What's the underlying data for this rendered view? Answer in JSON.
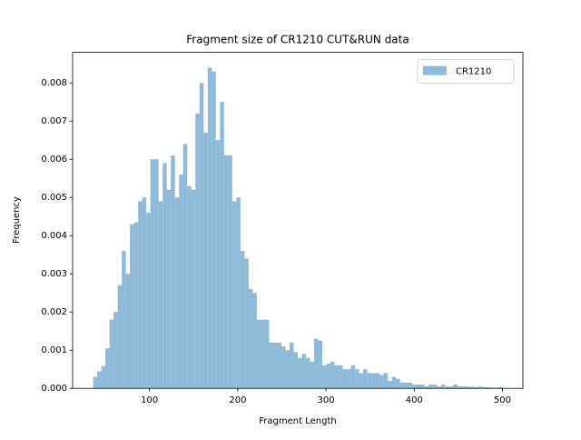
{
  "chart_data": {
    "type": "histogram",
    "title": "Fragment size of CR1210 CUT&RUN data",
    "x_label": "Fragment Length",
    "y_label": "Frequency",
    "bins": [
      36,
      40.64,
      45.28,
      49.92,
      54.56,
      59.2,
      63.84,
      68.48,
      73.12,
      77.76,
      82.4,
      87.04,
      91.68,
      96.32,
      100.96,
      105.6,
      110.24,
      114.88,
      119.52,
      124.16,
      128.8,
      133.44,
      138.08,
      142.72,
      147.36,
      152,
      156.64,
      161.28,
      165.92,
      170.56,
      175.2,
      179.84,
      184.48,
      189.12,
      193.76,
      198.4,
      203.04,
      207.68,
      212.32,
      216.96,
      221.6,
      226.24,
      230.88,
      235.52,
      240.16,
      244.8,
      249.44,
      254.08,
      258.72,
      263.36,
      268,
      272.64,
      277.28,
      281.92,
      286.56,
      291.2,
      295.84,
      300.48,
      305.12,
      309.76,
      314.4,
      319.04,
      323.68,
      328.32,
      332.96,
      337.6,
      342.24,
      346.88,
      351.52,
      356.16,
      360.8,
      365.44,
      370.08,
      374.72,
      379.36,
      384,
      388.64,
      393.28,
      397.92,
      402.56,
      407.2,
      411.84,
      416.48,
      421.12,
      425.76,
      430.4,
      435.04,
      439.68,
      444.32,
      448.96,
      453.6,
      458.24,
      462.88,
      467.52,
      472.16,
      476.8,
      481.44,
      486.08,
      490.72,
      495.36,
      500
    ],
    "series": [
      {
        "name": "CR1210",
        "color": "#1f77b4",
        "alpha": 0.5,
        "values": [
          0.0003,
          0.00045,
          0.00058,
          0.00105,
          0.0018,
          0.002,
          0.0027,
          0.0036,
          0.003,
          0.0043,
          0.00435,
          0.0049,
          0.005,
          0.0046,
          0.006,
          0.006,
          0.0049,
          0.0059,
          0.0052,
          0.0061,
          0.005,
          0.0056,
          0.0064,
          0.0053,
          0.0052,
          0.0072,
          0.008,
          0.0067,
          0.0084,
          0.0083,
          0.0065,
          0.0075,
          0.0061,
          0.0061,
          0.0049,
          0.005,
          0.0036,
          0.0034,
          0.0026,
          0.0025,
          0.0018,
          0.0018,
          0.0018,
          0.0012,
          0.0012,
          0.0012,
          0.0011,
          0.001,
          0.0012,
          0.00095,
          0.0008,
          0.0009,
          0.0008,
          0.0007,
          0.0013,
          0.00125,
          0.0006,
          0.00065,
          0.0007,
          0.0006,
          0.0006,
          0.0005,
          0.0005,
          0.0006,
          0.0005,
          0.0004,
          0.0005,
          0.0004,
          0.0004,
          0.0004,
          0.00035,
          0.0004,
          0.0002,
          0.0003,
          0.00025,
          0.00015,
          0.00015,
          0.00015,
          0.0001,
          0.0001,
          0.0001,
          5e-05,
          0.0001,
          0.0001,
          5e-05,
          0.0001,
          5e-05,
          5e-05,
          0.0001,
          5e-05,
          5e-05,
          5e-05,
          4e-05,
          3e-05,
          5e-05,
          3e-05,
          3e-05,
          2e-05,
          2e-05,
          3e-05
        ]
      }
    ],
    "xlim": [
      12.8,
      523.2
    ],
    "xticks": [
      100,
      200,
      300,
      400,
      500
    ],
    "ylim": [
      0,
      0.0088
    ],
    "yticks": [
      {
        "value": 0,
        "label": "0.000"
      },
      {
        "value": 0.001,
        "label": "0.001"
      },
      {
        "value": 0.002,
        "label": "0.002"
      },
      {
        "value": 0.003,
        "label": "0.003"
      },
      {
        "value": 0.004,
        "label": "0.004"
      },
      {
        "value": 0.005,
        "label": "0.005"
      },
      {
        "value": 0.006,
        "label": "0.006"
      },
      {
        "value": 0.007,
        "label": "0.007"
      },
      {
        "value": 0.008,
        "label": "0.008"
      }
    ],
    "legend": "upper right"
  }
}
